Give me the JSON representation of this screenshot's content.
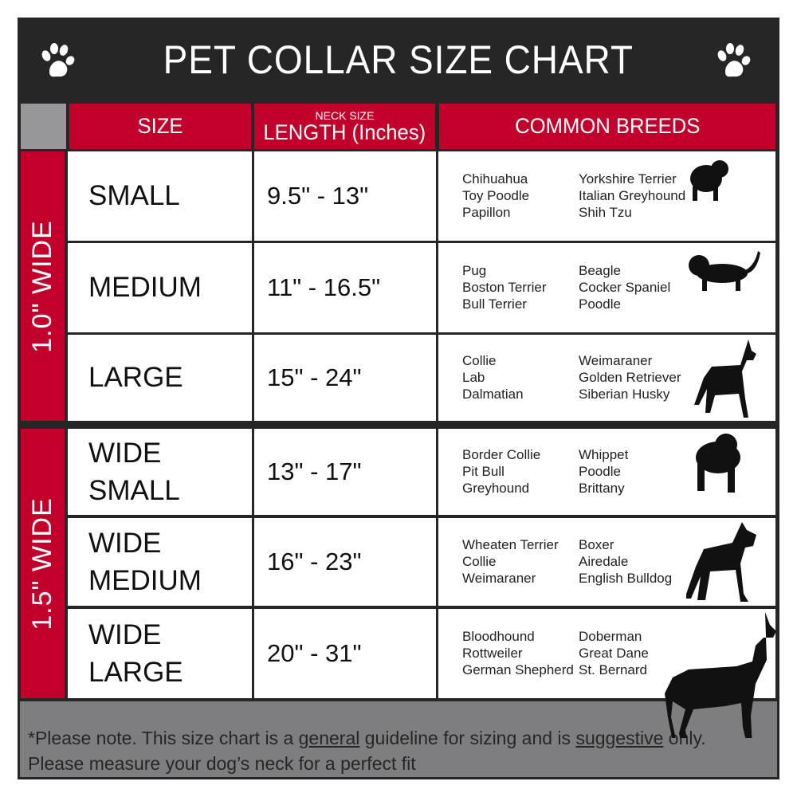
{
  "title": "PET COLLAR SIZE CHART",
  "header": {
    "size": "SIZE",
    "neck_size": "NECK SIZE",
    "length": "LENGTH (Inches)",
    "breeds": "COMMON BREEDS"
  },
  "groups": [
    {
      "label": "1.0\" WIDE"
    },
    {
      "label": "1.5\" WIDE"
    }
  ],
  "rows": [
    {
      "size": [
        "SMALL"
      ],
      "length": "9.5\" - 13\"",
      "breeds1": [
        "Chihuahua",
        "Toy Poodle",
        "Papillon"
      ],
      "breeds2": [
        "Yorkshire Terrier",
        "Italian Greyhound",
        "Shih Tzu"
      ],
      "icon": "small-dog-silhouette-icon"
    },
    {
      "size": [
        "MEDIUM"
      ],
      "length": "11\" - 16.5\"",
      "breeds1": [
        "Pug",
        "Boston Terrier",
        "Bull Terrier"
      ],
      "breeds2": [
        "Beagle",
        "Cocker Spaniel",
        "Poodle"
      ],
      "icon": "medium-dog-silhouette-icon"
    },
    {
      "size": [
        "LARGE"
      ],
      "length": "15\" - 24\"",
      "breeds1": [
        "Collie",
        "Lab",
        "Dalmatian"
      ],
      "breeds2": [
        "Weimaraner",
        "Golden Retriever",
        "Siberian Husky"
      ],
      "icon": "large-dog-silhouette-icon"
    },
    {
      "size": [
        "WIDE",
        "SMALL"
      ],
      "length": "13\" - 17\"",
      "breeds1": [
        "Border Collie",
        "Pit Bull",
        "Greyhound"
      ],
      "breeds2": [
        "Whippet",
        "Poodle",
        "Brittany"
      ],
      "icon": "bulldog-silhouette-icon"
    },
    {
      "size": [
        "WIDE",
        "MEDIUM"
      ],
      "length": "16\" - 23\"",
      "breeds1": [
        "Wheaten Terrier",
        "Collie",
        "Weimaraner"
      ],
      "breeds2": [
        "Boxer",
        "Airedale",
        "English Bulldog"
      ],
      "icon": "pitbull-silhouette-icon"
    },
    {
      "size": [
        "WIDE",
        "LARGE"
      ],
      "length": "20\" - 31\"",
      "breeds1": [
        "Bloodhound",
        "Rottweiler",
        "German Shepherd"
      ],
      "breeds2": [
        "Doberman",
        "Great Dane",
        "St. Bernard"
      ],
      "icon": "doberman-silhouette-icon"
    }
  ],
  "footer": {
    "pre": "*Please note. This size chart is a ",
    "u1": "general",
    "mid": " guideline for sizing and is ",
    "u2": "suggestive",
    "post": " only.",
    "line2": "Please measure your dog’s neck for a perfect fit"
  },
  "colors": {
    "red": "#c1002b",
    "dark": "#262626",
    "gray": "#7e7e80"
  }
}
